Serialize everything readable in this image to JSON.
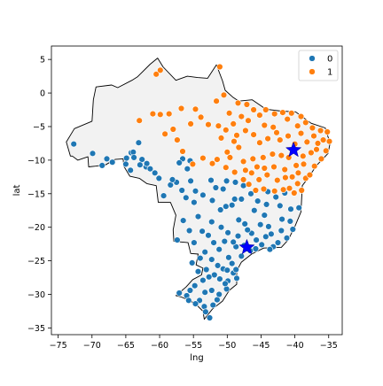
{
  "chart_data": {
    "type": "scatter",
    "title": "",
    "xlabel": "lng",
    "ylabel": "lat",
    "xlim": [
      -76,
      -33
    ],
    "ylim": [
      -36,
      7
    ],
    "xticks": [
      -75,
      -70,
      -65,
      -60,
      -55,
      -50,
      -45,
      -40,
      -35
    ],
    "yticks": [
      5,
      0,
      -5,
      -10,
      -15,
      -20,
      -25,
      -30,
      -35
    ],
    "xtick_labels": [
      "−75",
      "−70",
      "−65",
      "−60",
      "−55",
      "−50",
      "−45",
      "−40",
      "−35"
    ],
    "ytick_labels": [
      "5",
      "0",
      "−5",
      "−10",
      "−15",
      "−20",
      "−25",
      "−30",
      "−35"
    ],
    "grid": false,
    "legend": {
      "position": "top-right",
      "entries": [
        "0",
        "1"
      ]
    },
    "colors": {
      "cluster0": "#1f77b4",
      "cluster1": "#ff7f0e",
      "centroid": "#0000ff",
      "map_fill": "#f2f2f2",
      "map_edge": "#000000"
    },
    "background_map": "Brazil outline",
    "series": [
      {
        "name": "0",
        "points": [
          [
            -72.7,
            -7.6
          ],
          [
            -69.9,
            -9.0
          ],
          [
            -68.5,
            -10.8
          ],
          [
            -67.8,
            -9.8
          ],
          [
            -67.0,
            -10.3
          ],
          [
            -64.9,
            -9.7
          ],
          [
            -64.2,
            -8.9
          ],
          [
            -63.9,
            -8.8
          ],
          [
            -63.8,
            -9.6
          ],
          [
            -63.1,
            -7.4
          ],
          [
            -62.6,
            -9.9
          ],
          [
            -62.0,
            -11.0
          ],
          [
            -61.4,
            -11.3
          ],
          [
            -60.7,
            -11.9
          ],
          [
            -60.1,
            -12.7
          ],
          [
            -61.9,
            -10.5
          ],
          [
            -62.9,
            -10.7
          ],
          [
            -64.3,
            -11.5
          ],
          [
            -65.0,
            -10.6
          ],
          [
            -56.6,
            -9.8
          ],
          [
            -55.9,
            -11.3
          ],
          [
            -55.4,
            -13.1
          ],
          [
            -54.7,
            -14.6
          ],
          [
            -57.5,
            -13.3
          ],
          [
            -58.4,
            -13.7
          ],
          [
            -56.7,
            -14.5
          ],
          [
            -56.1,
            -15.6
          ],
          [
            -54.9,
            -16.3
          ],
          [
            -52.4,
            -13.0
          ],
          [
            -51.7,
            -14.1
          ],
          [
            -53.6,
            -15.2
          ],
          [
            -58.1,
            -12.9
          ],
          [
            -57.1,
            -10.4
          ],
          [
            -55.5,
            -10.1
          ],
          [
            -59.4,
            -15.3
          ],
          [
            -50.6,
            -14.3
          ],
          [
            -52.2,
            -16.0
          ],
          [
            -54.3,
            -18.4
          ],
          [
            -55.6,
            -20.5
          ],
          [
            -56.5,
            -19.0
          ],
          [
            -57.4,
            -21.9
          ],
          [
            -54.9,
            -22.3
          ],
          [
            -53.7,
            -20.6
          ],
          [
            -52.3,
            -19.2
          ],
          [
            -50.2,
            -16.9
          ],
          [
            -48.9,
            -15.8
          ],
          [
            -47.9,
            -15.8
          ],
          [
            -49.3,
            -16.7
          ],
          [
            -48.3,
            -18.9
          ],
          [
            -49.9,
            -20.8
          ],
          [
            -50.4,
            -22.1
          ],
          [
            -48.4,
            -21.3
          ],
          [
            -47.5,
            -22.7
          ],
          [
            -46.6,
            -23.5
          ],
          [
            -45.8,
            -23.2
          ],
          [
            -44.9,
            -22.6
          ],
          [
            -43.2,
            -22.9
          ],
          [
            -42.5,
            -22.3
          ],
          [
            -41.2,
            -21.6
          ],
          [
            -40.3,
            -20.3
          ],
          [
            -40.7,
            -19.1
          ],
          [
            -41.9,
            -18.8
          ],
          [
            -43.9,
            -19.9
          ],
          [
            -44.5,
            -18.2
          ],
          [
            -45.1,
            -19.6
          ],
          [
            -46.4,
            -20.9
          ],
          [
            -47.4,
            -19.5
          ],
          [
            -42.2,
            -16.8
          ],
          [
            -40.6,
            -17.3
          ],
          [
            -41.5,
            -14.9
          ],
          [
            -42.8,
            -15.5
          ],
          [
            -44.0,
            -14.7
          ],
          [
            -45.5,
            -16.1
          ],
          [
            -46.5,
            -15.0
          ],
          [
            -47.6,
            -13.8
          ],
          [
            -48.8,
            -13.3
          ],
          [
            -50.1,
            -13.1
          ],
          [
            -51.0,
            -17.4
          ],
          [
            -52.8,
            -21.2
          ],
          [
            -53.3,
            -23.7
          ],
          [
            -52.3,
            -24.8
          ],
          [
            -51.2,
            -23.3
          ],
          [
            -49.8,
            -24.5
          ],
          [
            -49.3,
            -25.4
          ],
          [
            -50.6,
            -26.2
          ],
          [
            -51.9,
            -27.1
          ],
          [
            -53.1,
            -26.3
          ],
          [
            -53.6,
            -27.9
          ],
          [
            -54.8,
            -28.7
          ],
          [
            -55.5,
            -29.4
          ],
          [
            -56.0,
            -30.2
          ],
          [
            -57.1,
            -29.8
          ],
          [
            -54.1,
            -30.9
          ],
          [
            -53.4,
            -31.8
          ],
          [
            -52.1,
            -31.6
          ],
          [
            -51.2,
            -30.0
          ],
          [
            -52.3,
            -29.4
          ],
          [
            -53.3,
            -29.7
          ],
          [
            -50.1,
            -29.2
          ],
          [
            -49.9,
            -28.0
          ],
          [
            -48.6,
            -27.6
          ],
          [
            -49.1,
            -26.8
          ],
          [
            -51.1,
            -27.7
          ],
          [
            -52.6,
            -33.5
          ],
          [
            -53.2,
            -32.6
          ],
          [
            -55.7,
            -30.9
          ],
          [
            -54.7,
            -31.4
          ],
          [
            -51.5,
            -30.8
          ],
          [
            -50.3,
            -28.4
          ],
          [
            -48.7,
            -26.3
          ],
          [
            -47.9,
            -24.3
          ],
          [
            -47.1,
            -23.2
          ],
          [
            -47.0,
            -20.4
          ],
          [
            -44.3,
            -21.4
          ],
          [
            -43.5,
            -21.0
          ],
          [
            -42.0,
            -20.5
          ],
          [
            -45.7,
            -21.9
          ],
          [
            -48.7,
            -22.9
          ],
          [
            -50.9,
            -20.0
          ],
          [
            -52.0,
            -22.3
          ],
          [
            -54.0,
            -24.6
          ],
          [
            -55.2,
            -25.3
          ],
          [
            -54.3,
            -26.6
          ],
          [
            -52.7,
            -27.4
          ],
          [
            -51.4,
            -25.7
          ],
          [
            -50.0,
            -26.4
          ],
          [
            -49.1,
            -22.2
          ],
          [
            -46.0,
            -17.5
          ],
          [
            -44.2,
            -16.6
          ],
          [
            -39.4,
            -17.1
          ],
          [
            -43.7,
            -23.3
          ]
        ]
      },
      {
        "name": "1",
        "points": [
          [
            -60.5,
            2.8
          ],
          [
            -59.9,
            3.4
          ],
          [
            -51.1,
            3.9
          ],
          [
            -50.5,
            -0.3
          ],
          [
            -51.6,
            -1.2
          ],
          [
            -54.7,
            -2.4
          ],
          [
            -56.8,
            -2.3
          ],
          [
            -58.6,
            -3.1
          ],
          [
            -59.9,
            -3.2
          ],
          [
            -63.0,
            -4.1
          ],
          [
            -55.4,
            -4.6
          ],
          [
            -53.9,
            -3.6
          ],
          [
            -52.8,
            -4.7
          ],
          [
            -51.3,
            -4.9
          ],
          [
            -50.2,
            -5.5
          ],
          [
            -49.1,
            -4.6
          ],
          [
            -47.9,
            -3.5
          ],
          [
            -49.7,
            -3.0
          ],
          [
            -48.4,
            -1.5
          ],
          [
            -47.1,
            -1.7
          ],
          [
            -46.1,
            -2.5
          ],
          [
            -45.2,
            -3.3
          ],
          [
            -44.3,
            -2.5
          ],
          [
            -43.0,
            -3.1
          ],
          [
            -41.8,
            -2.9
          ],
          [
            -40.5,
            -3.0
          ],
          [
            -39.1,
            -3.5
          ],
          [
            -38.4,
            -4.4
          ],
          [
            -37.4,
            -5.2
          ],
          [
            -36.2,
            -5.6
          ],
          [
            -35.2,
            -5.8
          ],
          [
            -34.9,
            -7.2
          ],
          [
            -35.4,
            -8.6
          ],
          [
            -36.1,
            -9.8
          ],
          [
            -37.1,
            -10.9
          ],
          [
            -38.4,
            -12.7
          ],
          [
            -39.0,
            -14.5
          ],
          [
            -39.6,
            -13.5
          ],
          [
            -40.8,
            -14.2
          ],
          [
            -41.4,
            -12.6
          ],
          [
            -42.6,
            -13.0
          ],
          [
            -44.1,
            -12.2
          ],
          [
            -45.3,
            -12.9
          ],
          [
            -46.4,
            -11.9
          ],
          [
            -47.6,
            -10.2
          ],
          [
            -48.3,
            -8.1
          ],
          [
            -49.0,
            -7.2
          ],
          [
            -50.0,
            -8.8
          ],
          [
            -48.6,
            -6.3
          ],
          [
            -47.3,
            -5.6
          ],
          [
            -46.1,
            -6.2
          ],
          [
            -45.2,
            -7.4
          ],
          [
            -44.0,
            -6.8
          ],
          [
            -43.2,
            -5.1
          ],
          [
            -42.2,
            -7.0
          ],
          [
            -41.0,
            -6.4
          ],
          [
            -40.0,
            -7.6
          ],
          [
            -39.1,
            -6.0
          ],
          [
            -38.2,
            -7.3
          ],
          [
            -37.2,
            -6.4
          ],
          [
            -36.6,
            -7.5
          ],
          [
            -37.6,
            -8.9
          ],
          [
            -38.8,
            -9.4
          ],
          [
            -39.8,
            -10.8
          ],
          [
            -40.9,
            -9.6
          ],
          [
            -42.0,
            -9.3
          ],
          [
            -43.3,
            -9.1
          ],
          [
            -44.7,
            -9.6
          ],
          [
            -46.2,
            -9.8
          ],
          [
            -47.3,
            -11.5
          ],
          [
            -45.6,
            -11.0
          ],
          [
            -44.5,
            -11.2
          ],
          [
            -43.1,
            -11.0
          ],
          [
            -41.5,
            -11.4
          ],
          [
            -40.4,
            -12.5
          ],
          [
            -39.5,
            -11.9
          ],
          [
            -38.7,
            -10.6
          ],
          [
            -40.1,
            -14.9
          ],
          [
            -41.7,
            -14.4
          ],
          [
            -43.0,
            -14.6
          ],
          [
            -44.6,
            -14.3
          ],
          [
            -45.8,
            -14.5
          ],
          [
            -46.8,
            -13.6
          ],
          [
            -47.6,
            -12.9
          ],
          [
            -48.9,
            -11.8
          ],
          [
            -50.2,
            -11.1
          ],
          [
            -51.5,
            -9.9
          ],
          [
            -52.2,
            -10.5
          ],
          [
            -53.6,
            -9.7
          ],
          [
            -55.1,
            -10.6
          ],
          [
            -57.4,
            -7.0
          ],
          [
            -59.2,
            -6.1
          ],
          [
            -56.6,
            -8.7
          ],
          [
            -58.0,
            -5.4
          ],
          [
            -61.0,
            -3.1
          ],
          [
            -50.9,
            -6.7
          ],
          [
            -49.6,
            -9.6
          ],
          [
            -37.8,
            -12.2
          ],
          [
            -41.1,
            -3.9
          ],
          [
            -44.5,
            -4.8
          ],
          [
            -46.9,
            -4.1
          ],
          [
            -42.7,
            -5.9
          ],
          [
            -39.6,
            -4.9
          ],
          [
            -36.8,
            -8.4
          ],
          [
            -35.8,
            -7.0
          ]
        ]
      },
      {
        "name": "",
        "marker": "star",
        "points": [
          [
            -40.2,
            -8.5
          ],
          [
            -47.1,
            -23.0
          ]
        ]
      }
    ]
  }
}
